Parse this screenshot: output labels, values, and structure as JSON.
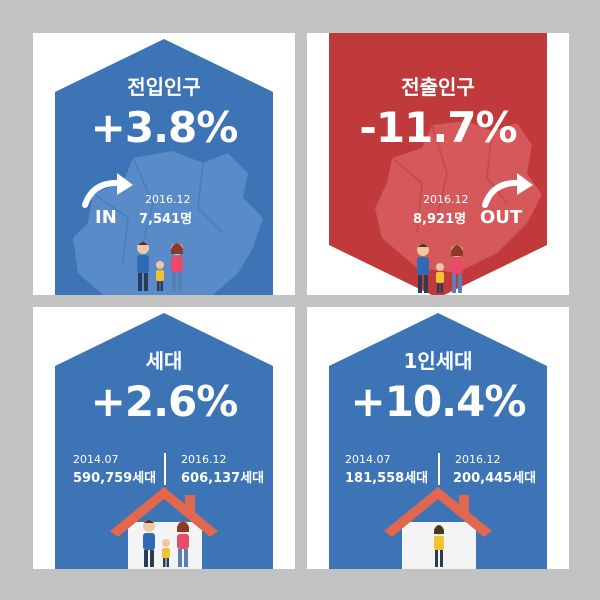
{
  "colors": {
    "blue": "#3d74b6",
    "red": "#c0393b",
    "map_blue": "#5d8fcb",
    "map_red": "#d96163",
    "house_roof": "#e2674f",
    "house_body": "#f4f4f4"
  },
  "panels": {
    "inflow": {
      "title": "전입인구",
      "change": "+3.8%",
      "date": "2016.12",
      "value": "7,541명",
      "arrow_label": "IN"
    },
    "outflow": {
      "title": "전출인구",
      "change": "-11.7%",
      "date": "2016.12",
      "value": "8,921명",
      "arrow_label": "OUT"
    },
    "households": {
      "title": "세대",
      "change": "+2.6%",
      "before_date": "2014.07",
      "before_value": "590,759세대",
      "after_date": "2016.12",
      "after_value": "606,137세대"
    },
    "single_households": {
      "title": "1인세대",
      "change": "+10.4%",
      "before_date": "2014.07",
      "before_value": "181,558세대",
      "after_date": "2016.12",
      "after_value": "200,445세대"
    }
  }
}
